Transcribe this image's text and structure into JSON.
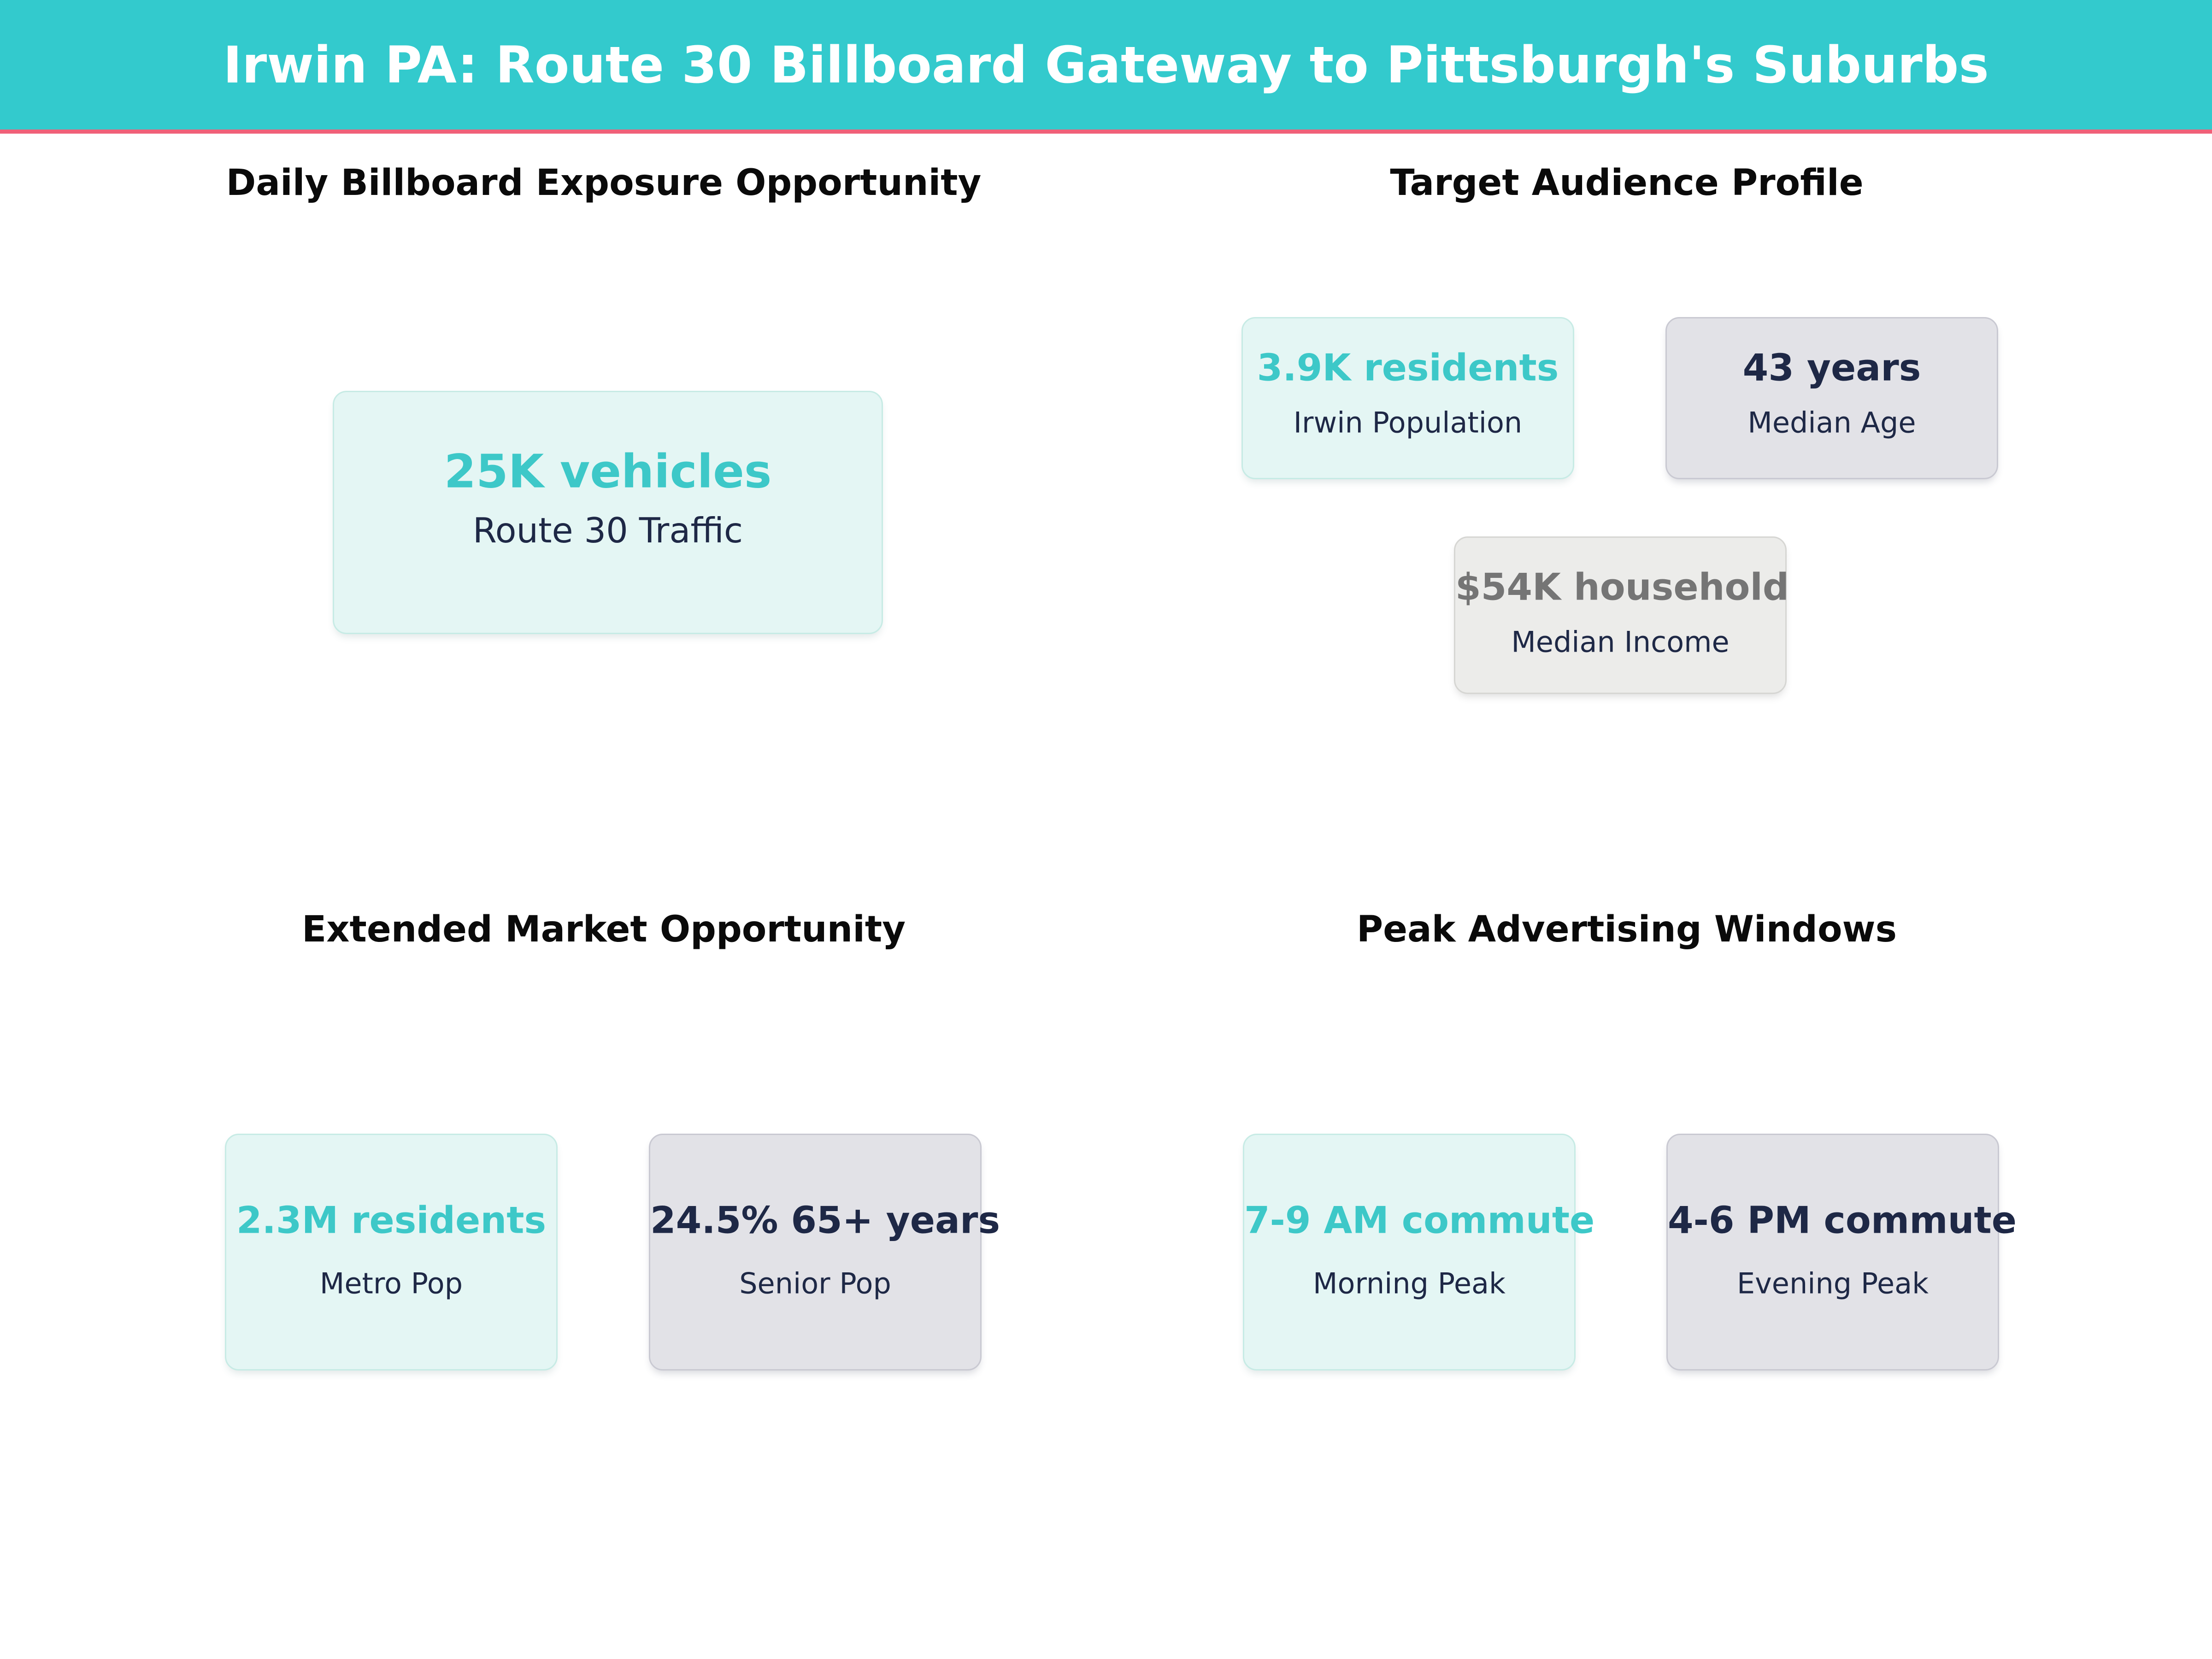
{
  "palette": {
    "header-bg": "#33cacd",
    "accent": "#f06078",
    "teal": "#3dc8c8",
    "navy": "#1e2846",
    "graytext": "#757575",
    "mint-bg": "#e4f6f4",
    "mint-border": "#c7ebe5",
    "gray-bg": "#e2e2e7",
    "gray-border": "#c9c9d2",
    "lightgray-bg": "#ececea",
    "lightgray-border": "#d6d6d3"
  },
  "header": {
    "title": "Irwin PA: Route 30 Billboard Gateway to Pittsburgh's Suburbs"
  },
  "quadrants": [
    {
      "title": "Daily Billboard Exposure Opportunity",
      "cards": [
        {
          "value": "25K vehicles",
          "label": "Route 30 Traffic",
          "value_color": "#3dc8c8",
          "card_color": "#e4f6f4"
        }
      ]
    },
    {
      "title": "Target Audience Profile",
      "cards": [
        {
          "value": "3.9K residents",
          "label": "Irwin Population",
          "value_color": "#3dc8c8",
          "card_color": "#e4f6f4"
        },
        {
          "value": "43 years",
          "label": "Median Age",
          "value_color": "#1e2846",
          "card_color": "#e2e2e7"
        },
        {
          "value": "$54K household",
          "label": "Median Income",
          "value_color": "#757575",
          "card_color": "#ececea"
        }
      ]
    },
    {
      "title": "Extended Market Opportunity",
      "cards": [
        {
          "value": "2.3M residents",
          "label": "Metro Pop",
          "value_color": "#3dc8c8",
          "card_color": "#e4f6f4"
        },
        {
          "value": "24.5% 65+ years",
          "label": "Senior Pop",
          "value_color": "#1e2846",
          "card_color": "#e2e2e7"
        }
      ]
    },
    {
      "title": "Peak Advertising Windows",
      "cards": [
        {
          "value": "7-9 AM commute",
          "label": "Morning Peak",
          "value_color": "#3dc8c8",
          "card_color": "#e4f6f4"
        },
        {
          "value": "4-6 PM commute",
          "label": "Evening Peak",
          "value_color": "#1e2846",
          "card_color": "#e2e2e7"
        }
      ]
    }
  ],
  "chart_data": {
    "type": "table",
    "title": "Irwin PA: Route 30 Billboard Gateway to Pittsburgh's Suburbs",
    "panels": [
      {
        "panel_title": "Daily Billboard Exposure Opportunity",
        "metrics": [
          {
            "value": "25K vehicles",
            "label": "Route 30 Traffic"
          }
        ]
      },
      {
        "panel_title": "Target Audience Profile",
        "metrics": [
          {
            "value": "3.9K residents",
            "label": "Irwin Population"
          },
          {
            "value": "43 years",
            "label": "Median Age"
          },
          {
            "value": "$54K household",
            "label": "Median Income"
          }
        ]
      },
      {
        "panel_title": "Extended Market Opportunity",
        "metrics": [
          {
            "value": "2.3M residents",
            "label": "Metro Pop"
          },
          {
            "value": "24.5% 65+ years",
            "label": "Senior Pop"
          }
        ]
      },
      {
        "panel_title": "Peak Advertising Windows",
        "metrics": [
          {
            "value": "7-9 AM commute",
            "label": "Morning Peak"
          },
          {
            "value": "4-6 PM commute",
            "label": "Evening Peak"
          }
        ]
      }
    ],
    "layout": "2x2 grid of metric-card panels",
    "legend": "none",
    "grid": "off"
  }
}
